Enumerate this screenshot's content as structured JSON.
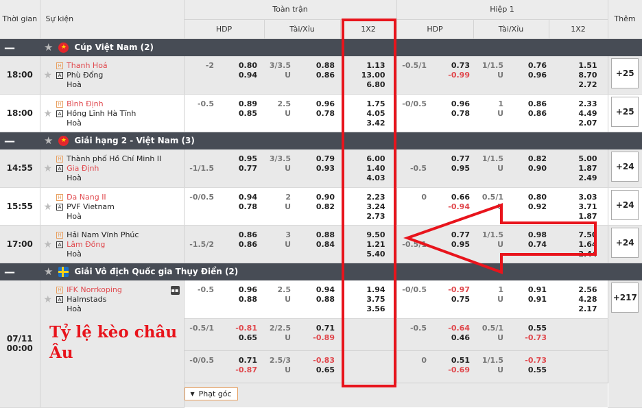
{
  "header": {
    "time": "Thời gian",
    "event": "Sự kiện",
    "full": "Toàn trận",
    "half": "Hiệp 1",
    "more": "Thêm",
    "hdp": "HDP",
    "ou": "Tài/Xỉu",
    "x12": "1X2"
  },
  "colors": {
    "league_bg": "#474c55",
    "fav_team": "#e0474c",
    "negative": "#e0474c",
    "annotation": "#e8141c"
  },
  "leagues": [
    {
      "name": "Cúp Việt Nam (2)",
      "flag": "vietnam-flag",
      "matches": [
        {
          "time": "18:00",
          "home": "Thanh Hoá",
          "away": "Phù Đổng",
          "draw": "Hoà",
          "fav": "home",
          "ft": {
            "hdp": {
              "line": "-2",
              "pos": 0,
              "odds": [
                "0.80",
                "0.94"
              ]
            },
            "ou": {
              "line": "3/3.5",
              "u": "U",
              "odds": [
                "0.88",
                "0.86"
              ]
            },
            "x12": [
              "1.13",
              "13.00",
              "6.80"
            ]
          },
          "h1": {
            "hdp": {
              "line": "-0.5/1",
              "pos": 0,
              "odds": [
                "0.73",
                "-0.99"
              ]
            },
            "ou": {
              "line": "1/1.5",
              "u": "U",
              "odds": [
                "0.76",
                "0.96"
              ]
            },
            "x12": [
              "1.51",
              "8.70",
              "2.72"
            ]
          },
          "more": "+25"
        },
        {
          "time": "18:00",
          "home": "Bình Định",
          "away": "Hồng Lĩnh Hà Tĩnh",
          "draw": "Hoà",
          "fav": "home",
          "ft": {
            "hdp": {
              "line": "-0.5",
              "pos": 0,
              "odds": [
                "0.89",
                "0.85"
              ]
            },
            "ou": {
              "line": "2.5",
              "u": "U",
              "odds": [
                "0.96",
                "0.78"
              ]
            },
            "x12": [
              "1.75",
              "4.05",
              "3.42"
            ]
          },
          "h1": {
            "hdp": {
              "line": "-0/0.5",
              "pos": 0,
              "odds": [
                "0.96",
                "0.78"
              ]
            },
            "ou": {
              "line": "1",
              "u": "U",
              "odds": [
                "0.86",
                "0.86"
              ]
            },
            "x12": [
              "2.33",
              "4.49",
              "2.07"
            ]
          },
          "more": "+25"
        }
      ]
    },
    {
      "name": "Giải hạng 2 - Việt Nam (3)",
      "flag": "vietnam-flag",
      "matches": [
        {
          "time": "14:55",
          "home": "Thành phố Hồ Chí Minh II",
          "away": "Gia Định",
          "draw": "Hoà",
          "fav": "away",
          "ft": {
            "hdp": {
              "line": "-1/1.5",
              "pos": 1,
              "odds": [
                "0.95",
                "0.77"
              ]
            },
            "ou": {
              "line": "3/3.5",
              "u": "U",
              "odds": [
                "0.79",
                "0.93"
              ]
            },
            "x12": [
              "6.00",
              "1.40",
              "4.03"
            ]
          },
          "h1": {
            "hdp": {
              "line": "-0.5",
              "pos": 1,
              "odds": [
                "0.77",
                "0.95"
              ]
            },
            "ou": {
              "line": "1/1.5",
              "u": "U",
              "odds": [
                "0.82",
                "0.90"
              ]
            },
            "x12": [
              "5.00",
              "1.87",
              "2.49"
            ]
          },
          "more": "+24"
        },
        {
          "time": "15:55",
          "home": "Da Nang II",
          "away": "PVF Vietnam",
          "draw": "Hoà",
          "fav": "home",
          "ft": {
            "hdp": {
              "line": "-0/0.5",
              "pos": 0,
              "odds": [
                "0.94",
                "0.78"
              ]
            },
            "ou": {
              "line": "2",
              "u": "U",
              "odds": [
                "0.90",
                "0.82"
              ]
            },
            "x12": [
              "2.23",
              "3.24",
              "2.73"
            ]
          },
          "h1": {
            "hdp": {
              "line": "0",
              "pos": 0,
              "odds": [
                "0.66",
                "-0.94"
              ]
            },
            "ou": {
              "line": "0.5/1",
              "u": "U",
              "odds": [
                "0.80",
                "0.92"
              ]
            },
            "x12": [
              "3.03",
              "3.71",
              "1.87"
            ]
          },
          "more": "+24"
        },
        {
          "time": "17:00",
          "home": "Hải Nam Vĩnh Phúc",
          "away": "Lâm Đồng",
          "draw": "Hoà",
          "fav": "away",
          "ft": {
            "hdp": {
              "line": "-1.5/2",
              "pos": 1,
              "odds": [
                "0.86",
                "0.86"
              ]
            },
            "ou": {
              "line": "3",
              "u": "U",
              "odds": [
                "0.88",
                "0.84"
              ]
            },
            "x12": [
              "9.50",
              "1.21",
              "5.40"
            ]
          },
          "h1": {
            "hdp": {
              "line": "-0.5/1",
              "pos": 1,
              "odds": [
                "0.77",
                "0.95"
              ]
            },
            "ou": {
              "line": "1/1.5",
              "u": "U",
              "odds": [
                "0.98",
                "0.74"
              ]
            },
            "x12": [
              "7.50",
              "1.64",
              "2.44"
            ]
          },
          "more": "+24"
        }
      ]
    },
    {
      "name": "Giải Vô địch Quốc gia Thụy Điển (2)",
      "flag": "sweden-flag",
      "matches": [
        {
          "time": "07/11 00:00",
          "home": "IFK Norrkoping",
          "away": "Halmstads",
          "draw": "Hoà",
          "fav": "home",
          "stats": true,
          "lines": [
            {
              "ft": {
                "hdp": {
                  "line": "-0.5",
                  "pos": 0,
                  "odds": [
                    "0.96",
                    "0.88"
                  ]
                },
                "ou": {
                  "line": "2.5",
                  "u": "U",
                  "odds": [
                    "0.94",
                    "0.88"
                  ]
                },
                "x12": [
                  "1.94",
                  "3.75",
                  "3.56"
                ]
              },
              "h1": {
                "hdp": {
                  "line": "-0/0.5",
                  "pos": 0,
                  "odds": [
                    "-0.97",
                    "0.75"
                  ]
                },
                "ou": {
                  "line": "1",
                  "u": "U",
                  "odds": [
                    "0.91",
                    "0.91"
                  ]
                },
                "x12": [
                  "2.56",
                  "4.28",
                  "2.17"
                ]
              }
            },
            {
              "ft": {
                "hdp": {
                  "line": "-0.5/1",
                  "pos": 0,
                  "odds": [
                    "-0.81",
                    "0.65"
                  ]
                },
                "ou": {
                  "line": "2/2.5",
                  "u": "U",
                  "odds": [
                    "0.71",
                    "-0.89"
                  ]
                },
                "x12": []
              },
              "h1": {
                "hdp": {
                  "line": "-0.5",
                  "pos": 0,
                  "odds": [
                    "-0.64",
                    "0.46"
                  ]
                },
                "ou": {
                  "line": "0.5/1",
                  "u": "U",
                  "odds": [
                    "0.55",
                    "-0.73"
                  ]
                },
                "x12": []
              }
            },
            {
              "ft": {
                "hdp": {
                  "line": "-0/0.5",
                  "pos": 0,
                  "odds": [
                    "0.71",
                    "-0.87"
                  ]
                },
                "ou": {
                  "line": "2.5/3",
                  "u": "U",
                  "odds": [
                    "-0.83",
                    "0.65"
                  ]
                },
                "x12": []
              },
              "h1": {
                "hdp": {
                  "line": "0",
                  "pos": 0,
                  "odds": [
                    "0.51",
                    "-0.69"
                  ]
                },
                "ou": {
                  "line": "1/1.5",
                  "u": "U",
                  "odds": [
                    "-0.73",
                    "0.55"
                  ]
                },
                "x12": []
              }
            }
          ],
          "more": "+217",
          "corner": "Phạt góc"
        }
      ]
    }
  ],
  "annotation": {
    "text": "Tỷ lệ kèo châu Âu",
    "highlight_column": "1X2"
  }
}
